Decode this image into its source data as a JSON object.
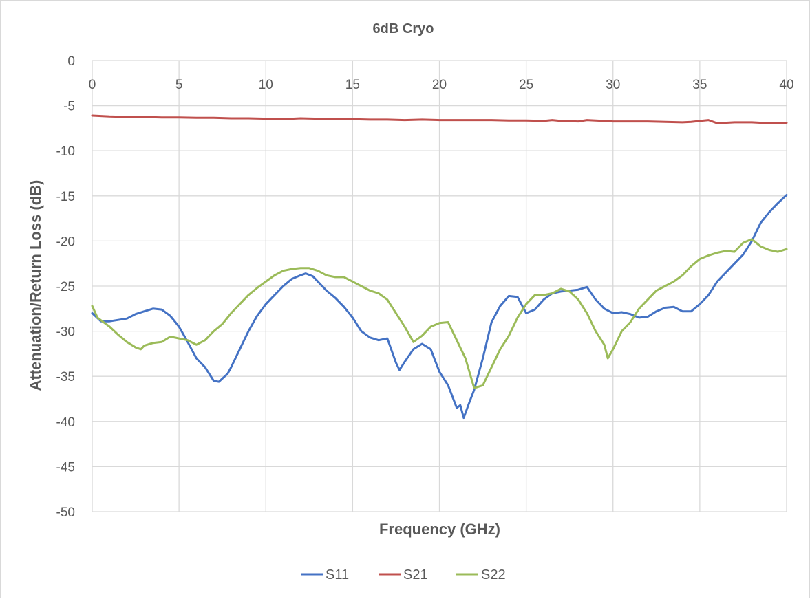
{
  "chart_data": {
    "type": "line",
    "title": "6dB Cryo",
    "xlabel": "Frequency (GHz)",
    "ylabel": "Attenuation/Return Loss (dB)",
    "xlim": [
      0,
      40
    ],
    "ylim": [
      -50,
      0
    ],
    "xticks": [
      0,
      5,
      10,
      15,
      20,
      25,
      30,
      35,
      40
    ],
    "yticks": [
      0,
      -5,
      -10,
      -15,
      -20,
      -25,
      -30,
      -35,
      -40,
      -45,
      -50
    ],
    "x_tick_position": "top",
    "grid": true,
    "legend": "bottom",
    "series": [
      {
        "name": "S11",
        "color": "#4472c4",
        "points": [
          [
            0,
            -28.0
          ],
          [
            0.5,
            -28.9
          ],
          [
            1,
            -28.9
          ],
          [
            2,
            -28.6
          ],
          [
            2.5,
            -28.1
          ],
          [
            3,
            -27.8
          ],
          [
            3.5,
            -27.5
          ],
          [
            4,
            -27.6
          ],
          [
            4.5,
            -28.3
          ],
          [
            5,
            -29.5
          ],
          [
            5.5,
            -31.2
          ],
          [
            6,
            -33.0
          ],
          [
            6.5,
            -34.0
          ],
          [
            7,
            -35.5
          ],
          [
            7.3,
            -35.6
          ],
          [
            7.8,
            -34.7
          ],
          [
            8,
            -34.0
          ],
          [
            8.5,
            -32.0
          ],
          [
            9,
            -30.0
          ],
          [
            9.5,
            -28.3
          ],
          [
            10,
            -27.0
          ],
          [
            10.5,
            -26.0
          ],
          [
            11,
            -25.0
          ],
          [
            11.5,
            -24.2
          ],
          [
            12,
            -23.8
          ],
          [
            12.3,
            -23.6
          ],
          [
            12.7,
            -23.9
          ],
          [
            13,
            -24.5
          ],
          [
            13.5,
            -25.5
          ],
          [
            14,
            -26.3
          ],
          [
            14.5,
            -27.3
          ],
          [
            15,
            -28.5
          ],
          [
            15.5,
            -30.0
          ],
          [
            16,
            -30.7
          ],
          [
            16.5,
            -31.0
          ],
          [
            17,
            -30.8
          ],
          [
            17.5,
            -33.5
          ],
          [
            17.7,
            -34.3
          ],
          [
            18,
            -33.4
          ],
          [
            18.5,
            -32.0
          ],
          [
            19,
            -31.4
          ],
          [
            19.5,
            -32.0
          ],
          [
            20,
            -34.5
          ],
          [
            20.5,
            -36.0
          ],
          [
            21,
            -38.5
          ],
          [
            21.2,
            -38.2
          ],
          [
            21.4,
            -39.6
          ],
          [
            21.7,
            -38.0
          ],
          [
            22,
            -36.5
          ],
          [
            22.5,
            -33.0
          ],
          [
            23,
            -29.0
          ],
          [
            23.5,
            -27.2
          ],
          [
            24,
            -26.1
          ],
          [
            24.5,
            -26.2
          ],
          [
            25,
            -28.0
          ],
          [
            25.5,
            -27.6
          ],
          [
            26,
            -26.5
          ],
          [
            26.5,
            -25.8
          ],
          [
            27,
            -25.6
          ],
          [
            27.5,
            -25.5
          ],
          [
            28,
            -25.4
          ],
          [
            28.5,
            -25.1
          ],
          [
            29,
            -26.5
          ],
          [
            29.5,
            -27.5
          ],
          [
            30,
            -28.0
          ],
          [
            30.5,
            -27.9
          ],
          [
            31,
            -28.1
          ],
          [
            31.5,
            -28.5
          ],
          [
            32,
            -28.4
          ],
          [
            32.5,
            -27.8
          ],
          [
            33,
            -27.4
          ],
          [
            33.5,
            -27.3
          ],
          [
            34,
            -27.8
          ],
          [
            34.5,
            -27.8
          ],
          [
            35,
            -27.0
          ],
          [
            35.5,
            -26.0
          ],
          [
            36,
            -24.5
          ],
          [
            36.5,
            -23.5
          ],
          [
            37,
            -22.5
          ],
          [
            37.5,
            -21.5
          ],
          [
            38,
            -20.0
          ],
          [
            38.5,
            -18.0
          ],
          [
            39,
            -16.8
          ],
          [
            39.5,
            -15.8
          ],
          [
            40,
            -14.9
          ]
        ]
      },
      {
        "name": "S21",
        "color": "#c0504d",
        "points": [
          [
            0,
            -6.1
          ],
          [
            1,
            -6.2
          ],
          [
            2,
            -6.25
          ],
          [
            3,
            -6.25
          ],
          [
            4,
            -6.3
          ],
          [
            5,
            -6.3
          ],
          [
            6,
            -6.35
          ],
          [
            7,
            -6.35
          ],
          [
            8,
            -6.4
          ],
          [
            9,
            -6.4
          ],
          [
            10,
            -6.45
          ],
          [
            11,
            -6.5
          ],
          [
            12,
            -6.4
          ],
          [
            13,
            -6.45
          ],
          [
            14,
            -6.5
          ],
          [
            15,
            -6.5
          ],
          [
            16,
            -6.55
          ],
          [
            17,
            -6.55
          ],
          [
            18,
            -6.6
          ],
          [
            19,
            -6.55
          ],
          [
            20,
            -6.6
          ],
          [
            21,
            -6.6
          ],
          [
            22,
            -6.6
          ],
          [
            23,
            -6.6
          ],
          [
            24,
            -6.65
          ],
          [
            25,
            -6.65
          ],
          [
            26,
            -6.7
          ],
          [
            26.5,
            -6.6
          ],
          [
            27,
            -6.7
          ],
          [
            28,
            -6.75
          ],
          [
            28.5,
            -6.6
          ],
          [
            29,
            -6.65
          ],
          [
            30,
            -6.75
          ],
          [
            31,
            -6.75
          ],
          [
            32,
            -6.75
          ],
          [
            33,
            -6.8
          ],
          [
            34,
            -6.85
          ],
          [
            34.5,
            -6.8
          ],
          [
            35,
            -6.7
          ],
          [
            35.5,
            -6.6
          ],
          [
            36,
            -6.95
          ],
          [
            37,
            -6.85
          ],
          [
            38,
            -6.85
          ],
          [
            39,
            -6.95
          ],
          [
            40,
            -6.9
          ]
        ]
      },
      {
        "name": "S22",
        "color": "#9bbb59",
        "points": [
          [
            0,
            -27.2
          ],
          [
            0.3,
            -28.5
          ],
          [
            1,
            -29.5
          ],
          [
            1.5,
            -30.4
          ],
          [
            2,
            -31.2
          ],
          [
            2.5,
            -31.8
          ],
          [
            2.8,
            -32.0
          ],
          [
            3,
            -31.6
          ],
          [
            3.5,
            -31.3
          ],
          [
            4,
            -31.2
          ],
          [
            4.5,
            -30.6
          ],
          [
            5,
            -30.8
          ],
          [
            5.5,
            -31.0
          ],
          [
            6,
            -31.5
          ],
          [
            6.5,
            -31.0
          ],
          [
            7,
            -30.0
          ],
          [
            7.5,
            -29.2
          ],
          [
            8,
            -28.0
          ],
          [
            8.5,
            -27.0
          ],
          [
            9,
            -26.0
          ],
          [
            9.5,
            -25.2
          ],
          [
            10,
            -24.5
          ],
          [
            10.5,
            -23.8
          ],
          [
            11,
            -23.3
          ],
          [
            11.5,
            -23.1
          ],
          [
            12,
            -23.0
          ],
          [
            12.5,
            -23.0
          ],
          [
            13,
            -23.3
          ],
          [
            13.5,
            -23.8
          ],
          [
            14,
            -24.0
          ],
          [
            14.5,
            -24.0
          ],
          [
            15,
            -24.5
          ],
          [
            15.5,
            -25.0
          ],
          [
            16,
            -25.5
          ],
          [
            16.5,
            -25.8
          ],
          [
            17,
            -26.5
          ],
          [
            17.5,
            -28.0
          ],
          [
            18,
            -29.5
          ],
          [
            18.5,
            -31.2
          ],
          [
            19,
            -30.5
          ],
          [
            19.5,
            -29.5
          ],
          [
            20,
            -29.1
          ],
          [
            20.5,
            -29.0
          ],
          [
            21,
            -31.0
          ],
          [
            21.5,
            -33.0
          ],
          [
            22,
            -36.3
          ],
          [
            22.5,
            -36.0
          ],
          [
            23,
            -34.0
          ],
          [
            23.5,
            -32.0
          ],
          [
            24,
            -30.5
          ],
          [
            24.5,
            -28.5
          ],
          [
            25,
            -27.0
          ],
          [
            25.5,
            -26.0
          ],
          [
            26,
            -26.0
          ],
          [
            26.5,
            -25.8
          ],
          [
            27,
            -25.3
          ],
          [
            27.5,
            -25.6
          ],
          [
            28,
            -26.5
          ],
          [
            28.5,
            -28.0
          ],
          [
            29,
            -30.0
          ],
          [
            29.5,
            -31.5
          ],
          [
            29.7,
            -33.0
          ],
          [
            30,
            -32.0
          ],
          [
            30.5,
            -30.0
          ],
          [
            31,
            -29.0
          ],
          [
            31.5,
            -27.5
          ],
          [
            32,
            -26.5
          ],
          [
            32.5,
            -25.5
          ],
          [
            33,
            -25.0
          ],
          [
            33.5,
            -24.5
          ],
          [
            34,
            -23.8
          ],
          [
            34.5,
            -22.8
          ],
          [
            35,
            -22.0
          ],
          [
            35.5,
            -21.6
          ],
          [
            36,
            -21.3
          ],
          [
            36.5,
            -21.1
          ],
          [
            37,
            -21.2
          ],
          [
            37.5,
            -20.2
          ],
          [
            38,
            -19.8
          ],
          [
            38.5,
            -20.6
          ],
          [
            39,
            -21.0
          ],
          [
            39.5,
            -21.2
          ],
          [
            40,
            -20.9
          ]
        ]
      }
    ]
  }
}
